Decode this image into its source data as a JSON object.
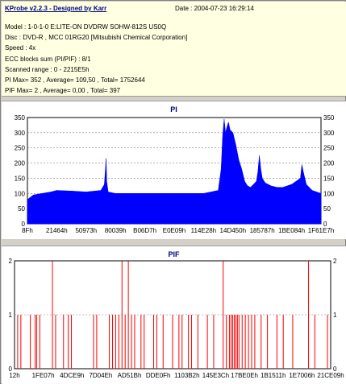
{
  "header": {
    "title": "KProbe v2.2.3 - Designed by Karr",
    "date": "Date : 2004-07-23 16:29:14"
  },
  "info": {
    "model": "Model : 1-0-1-0 E:LITE-ON DVDRW SOHW-812S  US0Q",
    "disc": "Disc : DVD-R , MCC 01RG20  [Mitsubishi Chemical Corporation]",
    "speed": "Speed : 4x",
    "ecc": "ECC blocks sum (PI/PIF) : 8/1",
    "range": "Scanned range : 0 - 2215E5h",
    "pi_summary": "PI Max= 352 , Average= 109,50 , Total= 1752644",
    "pif_summary": "PIF Max= 2 , Average= 0,00 , Total= 397"
  },
  "colors": {
    "pi": "#0000ff",
    "pif": "#ff0000",
    "grid": "#808080"
  },
  "chart_data": [
    {
      "type": "area",
      "title": "PI",
      "ylim": [
        0,
        350
      ],
      "yticks": [
        0,
        50,
        100,
        150,
        200,
        250,
        300,
        350
      ],
      "x_tick_labels": [
        "8Fh",
        "21464h",
        "50973h",
        "80039h",
        "B06D7h",
        "E0E09h",
        "114E28h",
        "14D450h",
        "185787h",
        "1BE084h",
        "1F61E7h"
      ],
      "x": [
        0,
        0.02,
        0.05,
        0.08,
        0.1,
        0.15,
        0.2,
        0.25,
        0.262,
        0.268,
        0.27,
        0.275,
        0.3,
        0.35,
        0.4,
        0.45,
        0.5,
        0.55,
        0.6,
        0.65,
        0.66,
        0.665,
        0.67,
        0.675,
        0.68,
        0.685,
        0.69,
        0.7,
        0.71,
        0.72,
        0.73,
        0.74,
        0.75,
        0.76,
        0.77,
        0.78,
        0.785,
        0.79,
        0.795,
        0.8,
        0.81,
        0.83,
        0.85,
        0.87,
        0.9,
        0.93,
        0.935,
        0.94,
        0.95,
        0.97,
        1.0
      ],
      "values": [
        80,
        95,
        100,
        105,
        110,
        108,
        105,
        110,
        130,
        215,
        140,
        105,
        100,
        100,
        100,
        100,
        100,
        100,
        100,
        110,
        180,
        290,
        345,
        300,
        320,
        335,
        310,
        300,
        260,
        210,
        180,
        140,
        125,
        120,
        130,
        140,
        170,
        225,
        180,
        150,
        135,
        125,
        120,
        120,
        130,
        150,
        195,
        170,
        130,
        110,
        100
      ]
    },
    {
      "type": "bar",
      "title": "PIF",
      "ylim": [
        0,
        2
      ],
      "yticks": [
        0,
        1,
        2
      ],
      "x_tick_labels": [
        "12h",
        "1FE07h",
        "4DCE9h",
        "7D04Eh",
        "AD51Bh",
        "DDE0Fh",
        "1103B2h",
        "145E3Ch",
        "17BE0Eh",
        "1B1511h",
        "1E7006h",
        "21CE09h"
      ],
      "x": [
        0.01,
        0.02,
        0.05,
        0.065,
        0.07,
        0.08,
        0.12,
        0.13,
        0.155,
        0.17,
        0.18,
        0.25,
        0.26,
        0.3,
        0.31,
        0.32,
        0.33,
        0.34,
        0.35,
        0.36,
        0.37,
        0.38,
        0.4,
        0.41,
        0.44,
        0.45,
        0.47,
        0.5,
        0.52,
        0.53,
        0.55,
        0.56,
        0.58,
        0.61,
        0.63,
        0.66,
        0.67,
        0.68,
        0.685,
        0.69,
        0.695,
        0.7,
        0.705,
        0.71,
        0.72,
        0.73,
        0.74,
        0.75,
        0.76,
        0.78,
        0.8,
        0.83,
        0.85,
        0.88,
        0.93,
        0.95,
        0.99
      ],
      "values": [
        1,
        1,
        1,
        1,
        1,
        1,
        2,
        1,
        1,
        1,
        1,
        1,
        1,
        1,
        1,
        1,
        1,
        2,
        1,
        2,
        1,
        1,
        1,
        1,
        1,
        1,
        1,
        1,
        1,
        1,
        1,
        1,
        1,
        1,
        1,
        2,
        1,
        1,
        1,
        1,
        1,
        1,
        1,
        1,
        1,
        1,
        1,
        1,
        1,
        1,
        1,
        1,
        1,
        1,
        2,
        1,
        1
      ]
    }
  ]
}
